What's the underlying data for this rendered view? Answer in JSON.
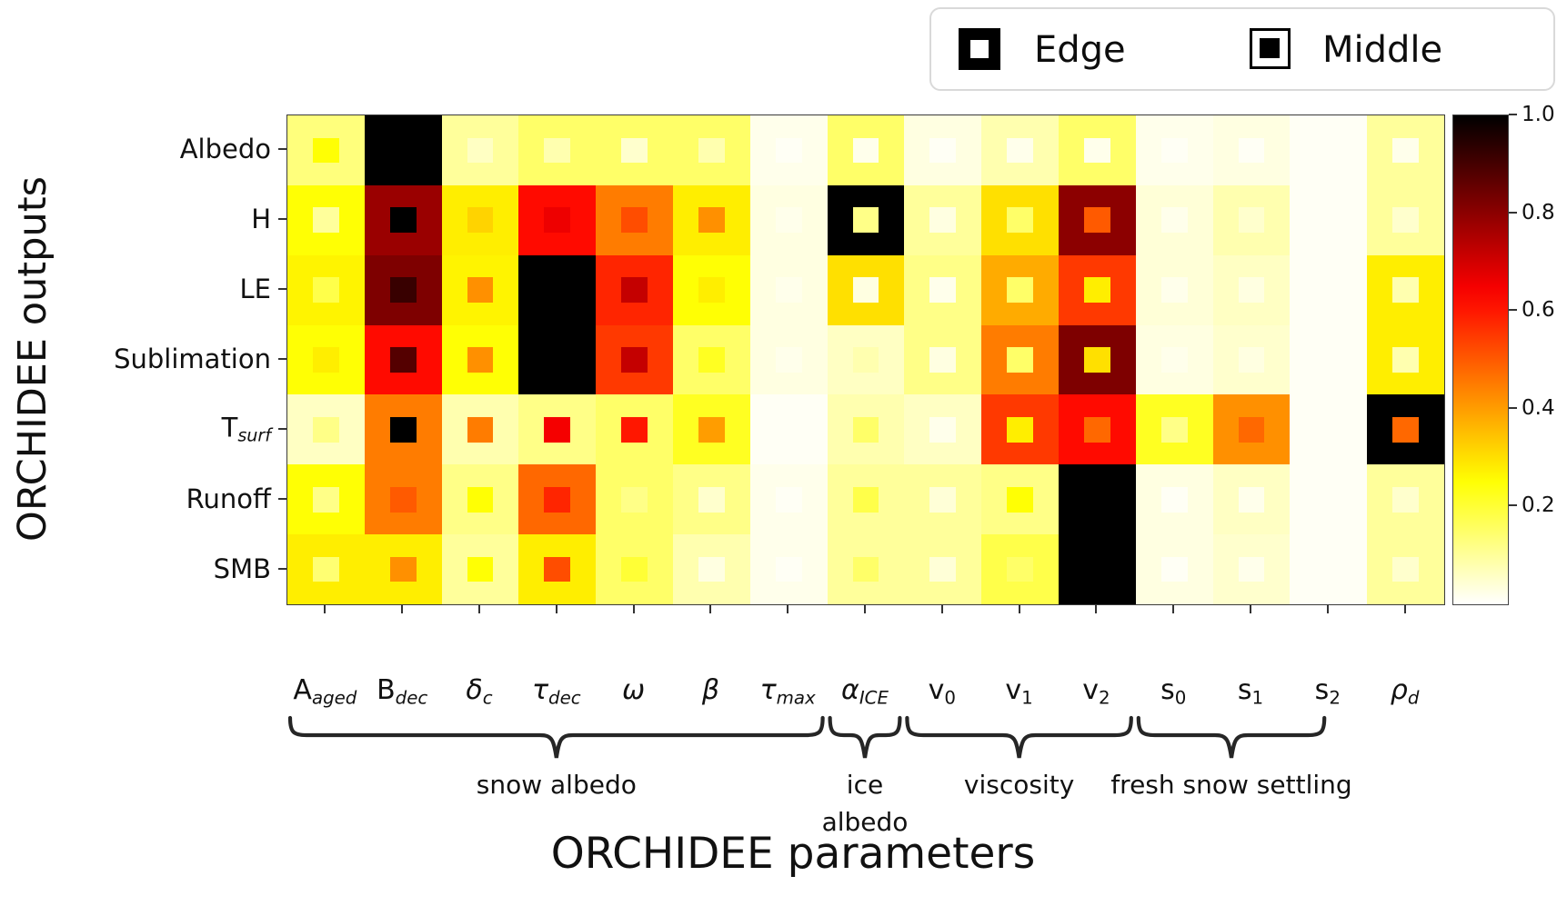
{
  "titles": {
    "y": "ORCHIDEE outputs",
    "x": "ORCHIDEE parameters"
  },
  "legend": {
    "edge_label": "Edge",
    "middle_label": "Middle"
  },
  "axis": {
    "row_label_parts": [
      {
        "main": "Albedo",
        "sub": ""
      },
      {
        "main": "H",
        "sub": ""
      },
      {
        "main": "LE",
        "sub": ""
      },
      {
        "main": "Sublimation",
        "sub": ""
      },
      {
        "main": "T",
        "sub": "surf"
      },
      {
        "main": "Runoff",
        "sub": ""
      },
      {
        "main": "SMB",
        "sub": ""
      }
    ],
    "col_label_parts": [
      {
        "main": "A",
        "sub": "aged"
      },
      {
        "main": "B",
        "sub": "dec"
      },
      {
        "main": "δ",
        "sub": "c"
      },
      {
        "main": "τ",
        "sub": "dec"
      },
      {
        "main": "ω",
        "sub": ""
      },
      {
        "main": "β",
        "sub": ""
      },
      {
        "main": "τ",
        "sub": "max"
      },
      {
        "main": "α",
        "sub": "ICE"
      },
      {
        "main": "v",
        "sub": "0"
      },
      {
        "main": "v",
        "sub": "1"
      },
      {
        "main": "v",
        "sub": "2"
      },
      {
        "main": "s",
        "sub": "0"
      },
      {
        "main": "s",
        "sub": "1"
      },
      {
        "main": "s",
        "sub": "2"
      },
      {
        "main": "ρ",
        "sub": "d"
      }
    ]
  },
  "colorbar": {
    "tick_labels": [
      "1.0",
      "0.8",
      "0.6",
      "0.4",
      "0.2"
    ],
    "tick_values": [
      1.0,
      0.8,
      0.6,
      0.4,
      0.2
    ],
    "min": 0,
    "max": 1
  },
  "chart_data": {
    "type": "heatmap",
    "colormap": "hot_r",
    "value_range": [
      0,
      1
    ],
    "xlabel": "ORCHIDEE parameters",
    "ylabel": "ORCHIDEE outputs",
    "legend_position": "top-right",
    "rows": [
      "Albedo",
      "H",
      "LE",
      "Sublimation",
      "T_surf",
      "Runoff",
      "SMB"
    ],
    "columns": [
      "A_aged",
      "B_dec",
      "δ_c",
      "τ_dec",
      "ω",
      "β",
      "τ_max",
      "α_ICE",
      "v_0",
      "v_1",
      "v_2",
      "s_0",
      "s_1",
      "s_2",
      "ρ_d"
    ],
    "series": [
      {
        "name": "Edge",
        "matrix": [
          [
            0.13,
            1.0,
            0.1,
            0.15,
            0.15,
            0.15,
            0.02,
            0.15,
            0.03,
            0.08,
            0.15,
            0.02,
            0.03,
            0.01,
            0.1
          ],
          [
            0.25,
            0.78,
            0.28,
            0.62,
            0.45,
            0.28,
            0.03,
            1.0,
            0.1,
            0.3,
            0.8,
            0.04,
            0.08,
            0.01,
            0.1
          ],
          [
            0.27,
            0.82,
            0.27,
            1.0,
            0.58,
            0.25,
            0.03,
            0.3,
            0.12,
            0.38,
            0.55,
            0.04,
            0.06,
            0.01,
            0.28
          ],
          [
            0.25,
            0.62,
            0.25,
            1.0,
            0.55,
            0.15,
            0.03,
            0.06,
            0.12,
            0.45,
            0.82,
            0.03,
            0.05,
            0.01,
            0.28
          ],
          [
            0.06,
            0.45,
            0.08,
            0.12,
            0.15,
            0.22,
            0.01,
            0.08,
            0.06,
            0.55,
            0.62,
            0.22,
            0.42,
            0.01,
            1.0
          ],
          [
            0.25,
            0.45,
            0.12,
            0.48,
            0.15,
            0.12,
            0.02,
            0.1,
            0.1,
            0.12,
            1.0,
            0.03,
            0.06,
            0.01,
            0.1
          ],
          [
            0.28,
            0.28,
            0.1,
            0.28,
            0.15,
            0.08,
            0.02,
            0.1,
            0.1,
            0.18,
            1.0,
            0.03,
            0.05,
            0.01,
            0.1
          ]
        ]
      },
      {
        "name": "Middle",
        "matrix": [
          [
            0.25,
            1.0,
            0.06,
            0.08,
            0.05,
            0.08,
            0.01,
            0.02,
            0.01,
            0.02,
            0.02,
            0.01,
            0.01,
            0.01,
            0.02
          ],
          [
            0.1,
            1.0,
            0.32,
            0.66,
            0.52,
            0.42,
            0.02,
            0.12,
            0.03,
            0.15,
            0.5,
            0.02,
            0.05,
            0.01,
            0.05
          ],
          [
            0.18,
            0.92,
            0.42,
            1.0,
            0.72,
            0.28,
            0.02,
            0.03,
            0.02,
            0.15,
            0.28,
            0.02,
            0.03,
            0.01,
            0.08
          ],
          [
            0.28,
            0.88,
            0.42,
            1.0,
            0.72,
            0.22,
            0.02,
            0.08,
            0.03,
            0.15,
            0.3,
            0.02,
            0.03,
            0.01,
            0.08
          ],
          [
            0.12,
            1.0,
            0.45,
            0.65,
            0.6,
            0.4,
            0.01,
            0.15,
            0.02,
            0.28,
            0.48,
            0.12,
            0.48,
            0.01,
            0.48
          ],
          [
            0.12,
            0.5,
            0.25,
            0.58,
            0.12,
            0.05,
            0.01,
            0.18,
            0.04,
            0.25,
            1.0,
            0.01,
            0.02,
            0.01,
            0.05
          ],
          [
            0.14,
            0.42,
            0.25,
            0.52,
            0.2,
            0.03,
            0.01,
            0.15,
            0.04,
            0.15,
            1.0,
            0.01,
            0.02,
            0.01,
            0.05
          ]
        ]
      }
    ],
    "parameter_groups": [
      {
        "lines": [
          "snow albedo"
        ],
        "from_col": 0,
        "to_col": 6
      },
      {
        "lines": [
          "ice",
          "albedo"
        ],
        "from_col": 7,
        "to_col": 7
      },
      {
        "lines": [
          "viscosity"
        ],
        "from_col": 8,
        "to_col": 10
      },
      {
        "lines": [
          "fresh snow settling"
        ],
        "from_col": 11,
        "to_col": 13
      }
    ]
  },
  "colors": {
    "brace": "#262626",
    "spine": "#3a3a3a",
    "legend_border": "#d9d9d9",
    "text": "#111111"
  }
}
